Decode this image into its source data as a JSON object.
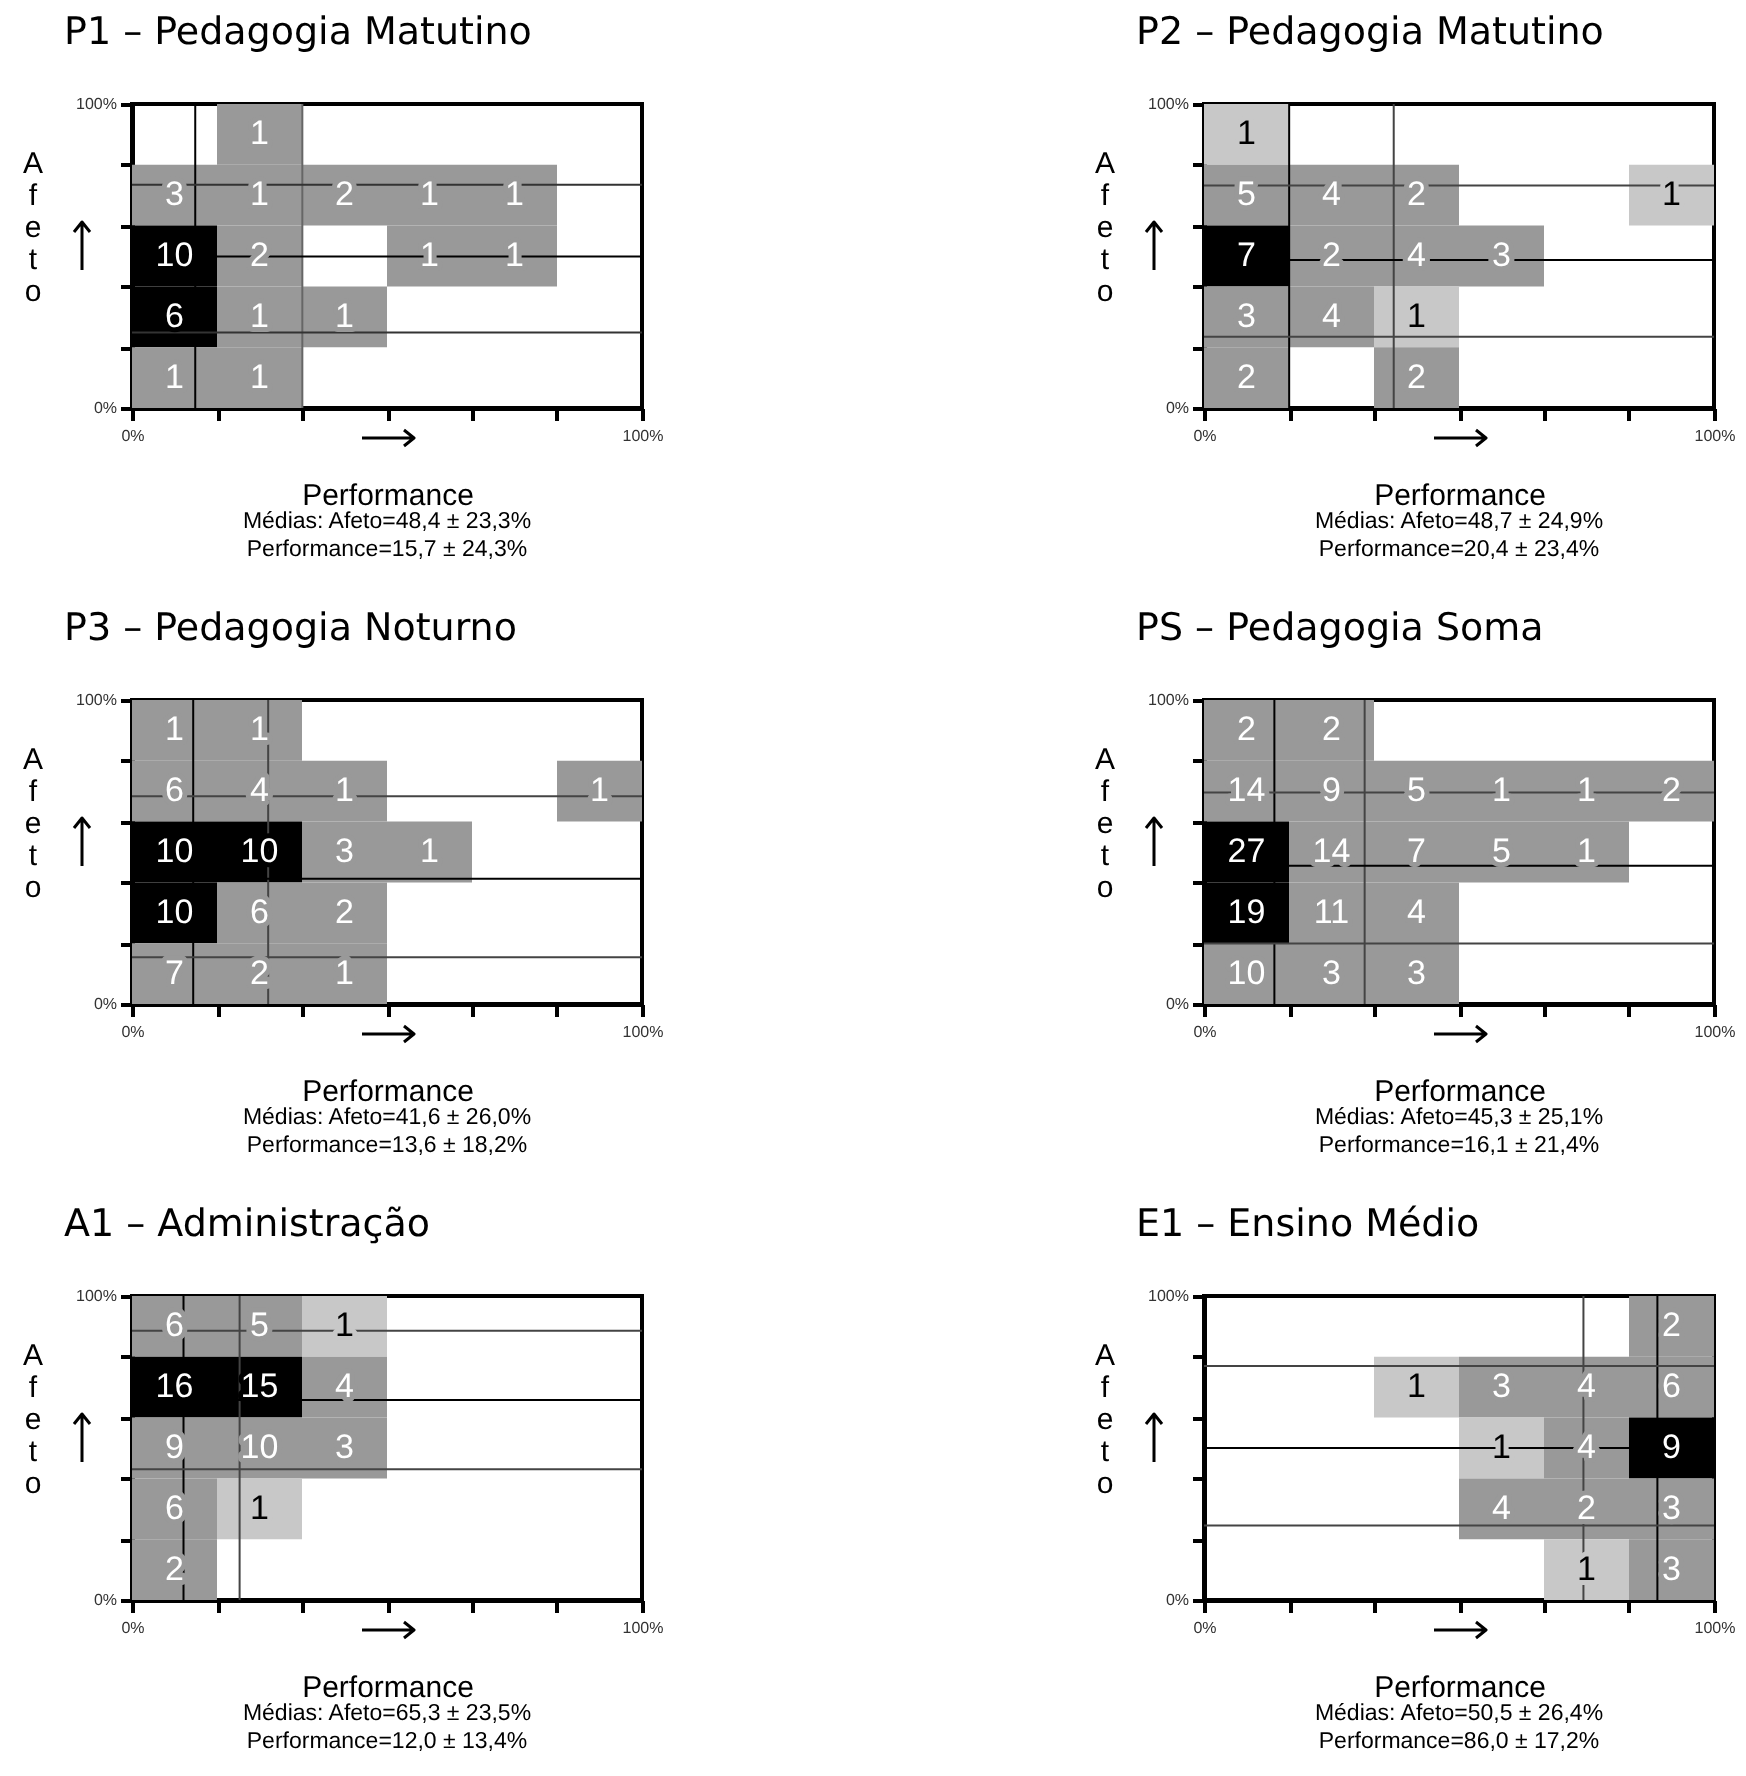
{
  "chart_data": [
    {
      "type": "heatmap",
      "title": "P1 – Pedagogia Matutino",
      "xlabel": "Performance",
      "ylabel": "Afeto",
      "xlim": [
        0,
        100
      ],
      "ylim": [
        0,
        100
      ],
      "xticks": [
        {
          "value": 0,
          "label": "0%"
        },
        {
          "value": 16.7,
          "label": null
        },
        {
          "value": 33.3,
          "label": null
        },
        {
          "value": 50,
          "label": null
        },
        {
          "value": 66.7,
          "label": null
        },
        {
          "value": 83.3,
          "label": null
        },
        {
          "value": 100,
          "label": "100%"
        }
      ],
      "yticks": [
        {
          "value": 0,
          "label": "0%"
        },
        {
          "value": 20,
          "label": null
        },
        {
          "value": 40,
          "label": null
        },
        {
          "value": 60,
          "label": null
        },
        {
          "value": 80,
          "label": null
        },
        {
          "value": 100,
          "label": "100%"
        }
      ],
      "data_labels": true,
      "cells": [
        [
          null,
          1,
          null,
          null,
          null,
          null
        ],
        [
          3,
          1,
          2,
          1,
          1,
          null
        ],
        [
          10,
          2,
          null,
          1,
          1,
          null
        ],
        [
          6,
          1,
          1,
          null,
          null,
          null
        ],
        [
          1,
          1,
          null,
          null,
          null,
          null
        ]
      ],
      "colors": [
        [
          null,
          "#999999",
          null,
          null,
          null,
          null
        ],
        [
          "#999999",
          "#999999",
          "#999999",
          "#999999",
          "#999999",
          null
        ],
        [
          "#000000",
          "#999999",
          null,
          "#999999",
          "#999999",
          null
        ],
        [
          "#000000",
          "#999999",
          "#999999",
          null,
          null,
          null
        ],
        [
          "#999999",
          "#999999",
          null,
          null,
          null,
          null
        ]
      ],
      "ref_lines": [
        {
          "axis": "x",
          "value": 12.4,
          "color": "#000000"
        },
        {
          "axis": "x",
          "value": 33.4,
          "color": "#666666"
        },
        {
          "axis": "y",
          "value": 73.4,
          "color": "#333333"
        },
        {
          "axis": "y",
          "value": 49.8,
          "color": "#000000"
        },
        {
          "axis": "y",
          "value": 24.8,
          "color": "#333333"
        }
      ],
      "annotations": [
        "Médias: Afeto=48,4 ± 23,3%",
        "Performance=15,7 ± 24,3%"
      ]
    },
    {
      "type": "heatmap",
      "title": "P2 – Pedagogia Matutino",
      "xlabel": "Performance",
      "ylabel": "Afeto",
      "xlim": [
        0,
        100
      ],
      "ylim": [
        0,
        100
      ],
      "xticks": [
        {
          "value": 0,
          "label": "0%"
        },
        {
          "value": 16.7,
          "label": null
        },
        {
          "value": 33.3,
          "label": null
        },
        {
          "value": 50,
          "label": null
        },
        {
          "value": 66.7,
          "label": null
        },
        {
          "value": 83.3,
          "label": null
        },
        {
          "value": 100,
          "label": "100%"
        }
      ],
      "yticks": [
        {
          "value": 0,
          "label": "0%"
        },
        {
          "value": 20,
          "label": null
        },
        {
          "value": 40,
          "label": null
        },
        {
          "value": 60,
          "label": null
        },
        {
          "value": 80,
          "label": null
        },
        {
          "value": 100,
          "label": "100%"
        }
      ],
      "data_labels": true,
      "cells": [
        [
          1,
          null,
          null,
          null,
          null,
          null
        ],
        [
          5,
          4,
          2,
          null,
          null,
          1
        ],
        [
          7,
          2,
          4,
          3,
          null,
          null
        ],
        [
          3,
          4,
          1,
          null,
          null,
          null
        ],
        [
          2,
          null,
          2,
          null,
          null,
          null
        ]
      ],
      "colors": [
        [
          "#c8c8c8",
          null,
          null,
          null,
          null,
          null
        ],
        [
          "#999999",
          "#999999",
          "#999999",
          null,
          null,
          "#c8c8c8"
        ],
        [
          "#000000",
          "#999999",
          "#999999",
          "#999999",
          null,
          null
        ],
        [
          "#999999",
          "#999999",
          "#c8c8c8",
          null,
          null,
          null
        ],
        [
          "#999999",
          null,
          "#999999",
          null,
          null,
          null
        ]
      ],
      "ref_lines": [
        {
          "axis": "x",
          "value": 16.7,
          "color": "#000000"
        },
        {
          "axis": "x",
          "value": 37.2,
          "color": "#444444"
        },
        {
          "axis": "y",
          "value": 73.2,
          "color": "#444444"
        },
        {
          "axis": "y",
          "value": 48.7,
          "color": "#000000"
        },
        {
          "axis": "y",
          "value": 23.4,
          "color": "#444444"
        }
      ],
      "annotations": [
        "Médias: Afeto=48,7 ± 24,9%",
        "Performance=20,4 ± 23,4%"
      ]
    },
    {
      "type": "heatmap",
      "title": "P3 – Pedagogia Noturno",
      "xlabel": "Performance",
      "ylabel": "Afeto",
      "xlim": [
        0,
        100
      ],
      "ylim": [
        0,
        100
      ],
      "xticks": [
        {
          "value": 0,
          "label": "0%"
        },
        {
          "value": 16.7,
          "label": null
        },
        {
          "value": 33.3,
          "label": null
        },
        {
          "value": 50,
          "label": null
        },
        {
          "value": 66.7,
          "label": null
        },
        {
          "value": 83.3,
          "label": null
        },
        {
          "value": 100,
          "label": "100%"
        }
      ],
      "yticks": [
        {
          "value": 0,
          "label": "0%"
        },
        {
          "value": 20,
          "label": null
        },
        {
          "value": 40,
          "label": null
        },
        {
          "value": 60,
          "label": null
        },
        {
          "value": 80,
          "label": null
        },
        {
          "value": 100,
          "label": "100%"
        }
      ],
      "data_labels": true,
      "cells": [
        [
          1,
          1,
          null,
          null,
          null,
          null
        ],
        [
          6,
          4,
          1,
          null,
          null,
          1
        ],
        [
          10,
          10,
          3,
          1,
          null,
          null
        ],
        [
          10,
          6,
          2,
          null,
          null,
          null
        ],
        [
          7,
          2,
          1,
          null,
          null,
          null
        ]
      ],
      "colors": [
        [
          "#999999",
          "#999999",
          null,
          null,
          null,
          null
        ],
        [
          "#999999",
          "#999999",
          "#999999",
          null,
          null,
          "#999999"
        ],
        [
          "#000000",
          "#000000",
          "#999999",
          "#999999",
          null,
          null
        ],
        [
          "#000000",
          "#999999",
          "#999999",
          null,
          null,
          null
        ],
        [
          "#999999",
          "#999999",
          "#999999",
          null,
          null,
          null
        ]
      ],
      "ref_lines": [
        {
          "axis": "x",
          "value": 12.0,
          "color": "#000000"
        },
        {
          "axis": "x",
          "value": 26.7,
          "color": "#444444"
        },
        {
          "axis": "y",
          "value": 68.3,
          "color": "#444444"
        },
        {
          "axis": "y",
          "value": 41.2,
          "color": "#000000"
        },
        {
          "axis": "y",
          "value": 15.4,
          "color": "#444444"
        }
      ],
      "annotations": [
        "Médias: Afeto=41,6 ± 26,0%",
        "Performance=13,6 ± 18,2%"
      ]
    },
    {
      "type": "heatmap",
      "title": "PS – Pedagogia Soma",
      "xlabel": "Performance",
      "ylabel": "Afeto",
      "xlim": [
        0,
        100
      ],
      "ylim": [
        0,
        100
      ],
      "xticks": [
        {
          "value": 0,
          "label": "0%"
        },
        {
          "value": 16.7,
          "label": null
        },
        {
          "value": 33.3,
          "label": null
        },
        {
          "value": 50,
          "label": null
        },
        {
          "value": 66.7,
          "label": null
        },
        {
          "value": 83.3,
          "label": null
        },
        {
          "value": 100,
          "label": "100%"
        }
      ],
      "yticks": [
        {
          "value": 0,
          "label": "0%"
        },
        {
          "value": 20,
          "label": null
        },
        {
          "value": 40,
          "label": null
        },
        {
          "value": 60,
          "label": null
        },
        {
          "value": 80,
          "label": null
        },
        {
          "value": 100,
          "label": "100%"
        }
      ],
      "data_labels": true,
      "cells": [
        [
          2,
          2,
          null,
          null,
          null,
          null
        ],
        [
          14,
          9,
          5,
          1,
          1,
          2
        ],
        [
          27,
          14,
          7,
          5,
          1,
          null
        ],
        [
          19,
          11,
          4,
          null,
          null,
          null
        ],
        [
          10,
          3,
          3,
          null,
          null,
          null
        ]
      ],
      "colors": [
        [
          "#999999",
          "#999999",
          null,
          null,
          null,
          null
        ],
        [
          "#999999",
          "#999999",
          "#999999",
          "#999999",
          "#999999",
          "#999999"
        ],
        [
          "#000000",
          "#999999",
          "#999999",
          "#999999",
          "#999999",
          null
        ],
        [
          "#000000",
          "#999999",
          "#999999",
          null,
          null,
          null
        ],
        [
          "#999999",
          "#999999",
          "#999999",
          null,
          null,
          null
        ]
      ],
      "ref_lines": [
        {
          "axis": "x",
          "value": 13.8,
          "color": "#000000"
        },
        {
          "axis": "x",
          "value": 31.5,
          "color": "#444444"
        },
        {
          "axis": "y",
          "value": 69.6,
          "color": "#444444"
        },
        {
          "axis": "y",
          "value": 45.5,
          "color": "#000000"
        },
        {
          "axis": "y",
          "value": 19.9,
          "color": "#444444"
        }
      ],
      "annotations": [
        "Médias: Afeto=45,3 ± 25,1%",
        "Performance=16,1 ± 21,4%"
      ]
    },
    {
      "type": "heatmap",
      "title": "A1 – Administração",
      "xlabel": "Performance",
      "ylabel": "Afeto",
      "xlim": [
        0,
        100
      ],
      "ylim": [
        0,
        100
      ],
      "xticks": [
        {
          "value": 0,
          "label": "0%"
        },
        {
          "value": 16.7,
          "label": null
        },
        {
          "value": 33.3,
          "label": null
        },
        {
          "value": 50,
          "label": null
        },
        {
          "value": 66.7,
          "label": null
        },
        {
          "value": 83.3,
          "label": null
        },
        {
          "value": 100,
          "label": "100%"
        }
      ],
      "yticks": [
        {
          "value": 0,
          "label": "0%"
        },
        {
          "value": 20,
          "label": null
        },
        {
          "value": 40,
          "label": null
        },
        {
          "value": 60,
          "label": null
        },
        {
          "value": 80,
          "label": null
        },
        {
          "value": 100,
          "label": "100%"
        }
      ],
      "data_labels": true,
      "cells": [
        [
          6,
          5,
          1,
          null,
          null,
          null
        ],
        [
          16,
          15,
          4,
          null,
          null,
          null
        ],
        [
          9,
          10,
          3,
          null,
          null,
          null
        ],
        [
          6,
          1,
          null,
          null,
          null,
          null
        ],
        [
          2,
          null,
          null,
          null,
          null,
          null
        ]
      ],
      "colors": [
        [
          "#999999",
          "#999999",
          "#c8c8c8",
          null,
          null,
          null
        ],
        [
          "#000000",
          "#000000",
          "#999999",
          null,
          null,
          null
        ],
        [
          "#999999",
          "#999999",
          "#999999",
          null,
          null,
          null
        ],
        [
          "#999999",
          "#c8c8c8",
          null,
          null,
          null,
          null
        ],
        [
          "#999999",
          null,
          null,
          null,
          null,
          null
        ]
      ],
      "ref_lines": [
        {
          "axis": "x",
          "value": 10.1,
          "color": "#000000"
        },
        {
          "axis": "x",
          "value": 21.1,
          "color": "#444444"
        },
        {
          "axis": "y",
          "value": 88.6,
          "color": "#444444"
        },
        {
          "axis": "y",
          "value": 65.8,
          "color": "#000000"
        },
        {
          "axis": "y",
          "value": 43.0,
          "color": "#444444"
        }
      ],
      "annotations": [
        "Médias: Afeto=65,3 ± 23,5%",
        "Performance=12,0 ± 13,4%"
      ]
    },
    {
      "type": "heatmap",
      "title": "E1 – Ensino Médio",
      "xlabel": "Performance",
      "ylabel": "Afeto",
      "xlim": [
        0,
        100
      ],
      "ylim": [
        0,
        100
      ],
      "xticks": [
        {
          "value": 0,
          "label": "0%"
        },
        {
          "value": 16.7,
          "label": null
        },
        {
          "value": 33.3,
          "label": null
        },
        {
          "value": 50,
          "label": null
        },
        {
          "value": 66.7,
          "label": null
        },
        {
          "value": 83.3,
          "label": null
        },
        {
          "value": 100,
          "label": "100%"
        }
      ],
      "yticks": [
        {
          "value": 0,
          "label": "0%"
        },
        {
          "value": 20,
          "label": null
        },
        {
          "value": 40,
          "label": null
        },
        {
          "value": 60,
          "label": null
        },
        {
          "value": 80,
          "label": null
        },
        {
          "value": 100,
          "label": "100%"
        }
      ],
      "data_labels": true,
      "cells": [
        [
          null,
          null,
          null,
          null,
          null,
          2
        ],
        [
          null,
          null,
          1,
          3,
          4,
          6
        ],
        [
          null,
          null,
          null,
          1,
          4,
          9
        ],
        [
          null,
          null,
          null,
          4,
          2,
          3
        ],
        [
          null,
          null,
          null,
          null,
          1,
          3
        ]
      ],
      "colors": [
        [
          null,
          null,
          null,
          null,
          null,
          "#999999"
        ],
        [
          null,
          null,
          "#c8c8c8",
          "#999999",
          "#999999",
          "#999999"
        ],
        [
          null,
          null,
          null,
          "#c8c8c8",
          "#999999",
          "#000000"
        ],
        [
          null,
          null,
          null,
          "#999999",
          "#999999",
          "#999999"
        ],
        [
          null,
          null,
          null,
          null,
          "#c8c8c8",
          "#999999"
        ]
      ],
      "ref_lines": [
        {
          "axis": "x",
          "value": 74.4,
          "color": "#444444"
        },
        {
          "axis": "x",
          "value": 88.9,
          "color": "#000000"
        },
        {
          "axis": "y",
          "value": 77.0,
          "color": "#444444"
        },
        {
          "axis": "y",
          "value": 50.0,
          "color": "#000000"
        },
        {
          "axis": "y",
          "value": 24.5,
          "color": "#444444"
        }
      ],
      "annotations": [
        "Médias: Afeto=50,5 ± 26,4%",
        "Performance=86,0 ± 17,2%"
      ]
    }
  ]
}
